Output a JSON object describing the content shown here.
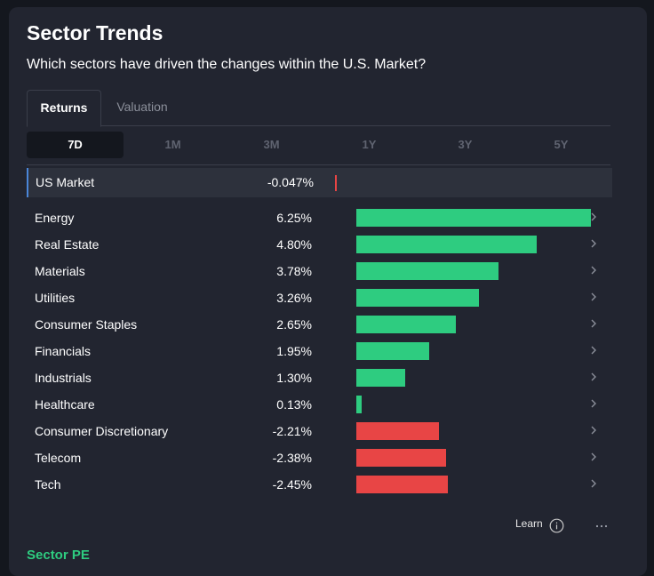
{
  "header": {
    "title": "Sector Trends",
    "subtitle": "Which sectors have driven the changes within the U.S. Market?"
  },
  "tabs": [
    {
      "label": "Returns",
      "active": true
    },
    {
      "label": "Valuation",
      "active": false
    }
  ],
  "periods": [
    {
      "label": "7D",
      "active": true
    },
    {
      "label": "1M",
      "active": false
    },
    {
      "label": "3M",
      "active": false
    },
    {
      "label": "1Y",
      "active": false
    },
    {
      "label": "3Y",
      "active": false
    },
    {
      "label": "5Y",
      "active": false
    }
  ],
  "market": {
    "name": "US Market",
    "value_label": "-0.047%",
    "value": -0.047
  },
  "sectors": [
    {
      "name": "Energy",
      "value_label": "6.25%",
      "value": 6.25
    },
    {
      "name": "Real Estate",
      "value_label": "4.80%",
      "value": 4.8
    },
    {
      "name": "Materials",
      "value_label": "3.78%",
      "value": 3.78
    },
    {
      "name": "Utilities",
      "value_label": "3.26%",
      "value": 3.26
    },
    {
      "name": "Consumer Staples",
      "value_label": "2.65%",
      "value": 2.65
    },
    {
      "name": "Financials",
      "value_label": "1.95%",
      "value": 1.95
    },
    {
      "name": "Industrials",
      "value_label": "1.30%",
      "value": 1.3
    },
    {
      "name": "Healthcare",
      "value_label": "0.13%",
      "value": 0.13
    },
    {
      "name": "Consumer Discretionary",
      "value_label": "-2.21%",
      "value": -2.21
    },
    {
      "name": "Telecom",
      "value_label": "-2.38%",
      "value": -2.38
    },
    {
      "name": "Tech",
      "value_label": "-2.45%",
      "value": -2.45
    }
  ],
  "colors": {
    "positive": "#2ecc80",
    "negative": "#e84545",
    "card": "#222530",
    "background": "#14171e"
  },
  "footer": {
    "learn_label": "Learn",
    "info_icon": "info-icon",
    "more_icon": "more-icon"
  },
  "next_section": {
    "title": "Sector PE"
  }
}
